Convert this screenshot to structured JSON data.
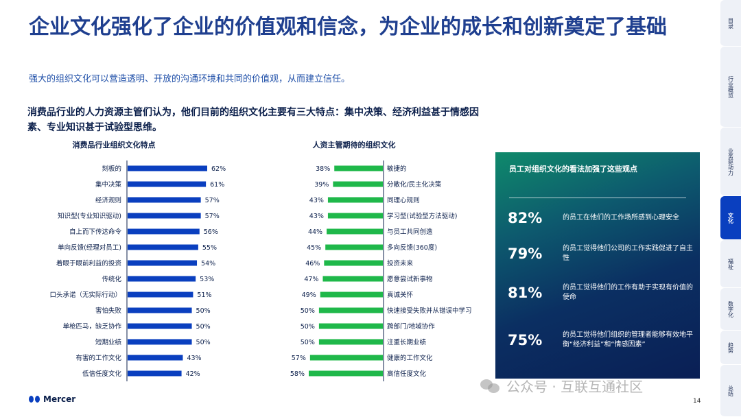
{
  "slide": {
    "title": "企业文化强化了企业的价值观和信念，为企业的成长和创新奠定了基础",
    "subtitle": "强大的组织文化可以营造透明、开放的沟通环境和共同的价值观，从而建立信任。",
    "lead": "消费品行业的人力资源主管们认为，他们目前的组织文化主要有三大特点：集中决策、经济利益甚于情感因素、专业知识甚于试验型思维。",
    "page_number": "14",
    "logo_text": "Mercer",
    "watermark": "公众号 · 互联互通社区"
  },
  "chart_data": [
    {
      "type": "bar",
      "orientation": "horizontal",
      "title": "消费品行业组织文化特点",
      "value_suffix": "%",
      "color": "#0a3fbf",
      "categories": [
        "刻板的",
        "集中决策",
        "经济规则",
        "知识型(专业知识驱动)",
        "自上而下传达命令",
        "单向反馈(经理对员工)",
        "着眼于眼前利益的投资",
        "传统化",
        "口头承诺（无实际行动）",
        "害怕失败",
        "单枪匹马，缺乏协作",
        "短期业绩",
        "有害的工作文化",
        "低信任度文化"
      ],
      "values": [
        62,
        61,
        57,
        57,
        56,
        55,
        54,
        53,
        51,
        50,
        50,
        50,
        43,
        42
      ],
      "xlim": [
        0,
        62
      ]
    },
    {
      "type": "bar",
      "orientation": "horizontal",
      "title": "人资主管期待的组织文化",
      "value_suffix": "%",
      "color": "#1fb84a",
      "categories": [
        "敏捷的",
        "分散化/民主化决策",
        "同理心规则",
        "学习型(试验型方法驱动)",
        "与员工共同创造",
        "多向反馈(360度)",
        "投资未来",
        "愿意尝试新事物",
        "真诚关怀",
        "快速接受失败并从错误中学习",
        "跨部门/地域协作",
        "注重长期业绩",
        "健康的工作文化",
        "高信任度文化"
      ],
      "values": [
        38,
        39,
        43,
        43,
        44,
        45,
        46,
        47,
        49,
        50,
        50,
        50,
        57,
        58
      ],
      "xlim": [
        0,
        58
      ]
    }
  ],
  "panel": {
    "title": "员工对组织文化的看法加强了这些观点",
    "stats": [
      {
        "pct": "82%",
        "desc": "的员工在他们的工作场所感到心理安全"
      },
      {
        "pct": "79%",
        "desc": "的员工觉得他们公司的工作实践促进了自主性"
      },
      {
        "pct": "81%",
        "desc": "的员工觉得他们的工作有助于实现有价值的使命"
      },
      {
        "pct": "75%",
        "desc": "的员工觉得他们组织的管理者能够有效地平衡“经济利益”和“情感因素”"
      }
    ]
  },
  "sidebar": {
    "tabs": [
      {
        "label": "目录",
        "active": false
      },
      {
        "label": "行业概览",
        "active": false
      },
      {
        "label": "业务驱动力",
        "active": false
      },
      {
        "label": "文化",
        "active": true
      },
      {
        "label": "福祉",
        "active": false
      },
      {
        "label": "数字化",
        "active": false
      },
      {
        "label": "趋势",
        "active": false
      },
      {
        "label": "总结",
        "active": false
      }
    ]
  }
}
